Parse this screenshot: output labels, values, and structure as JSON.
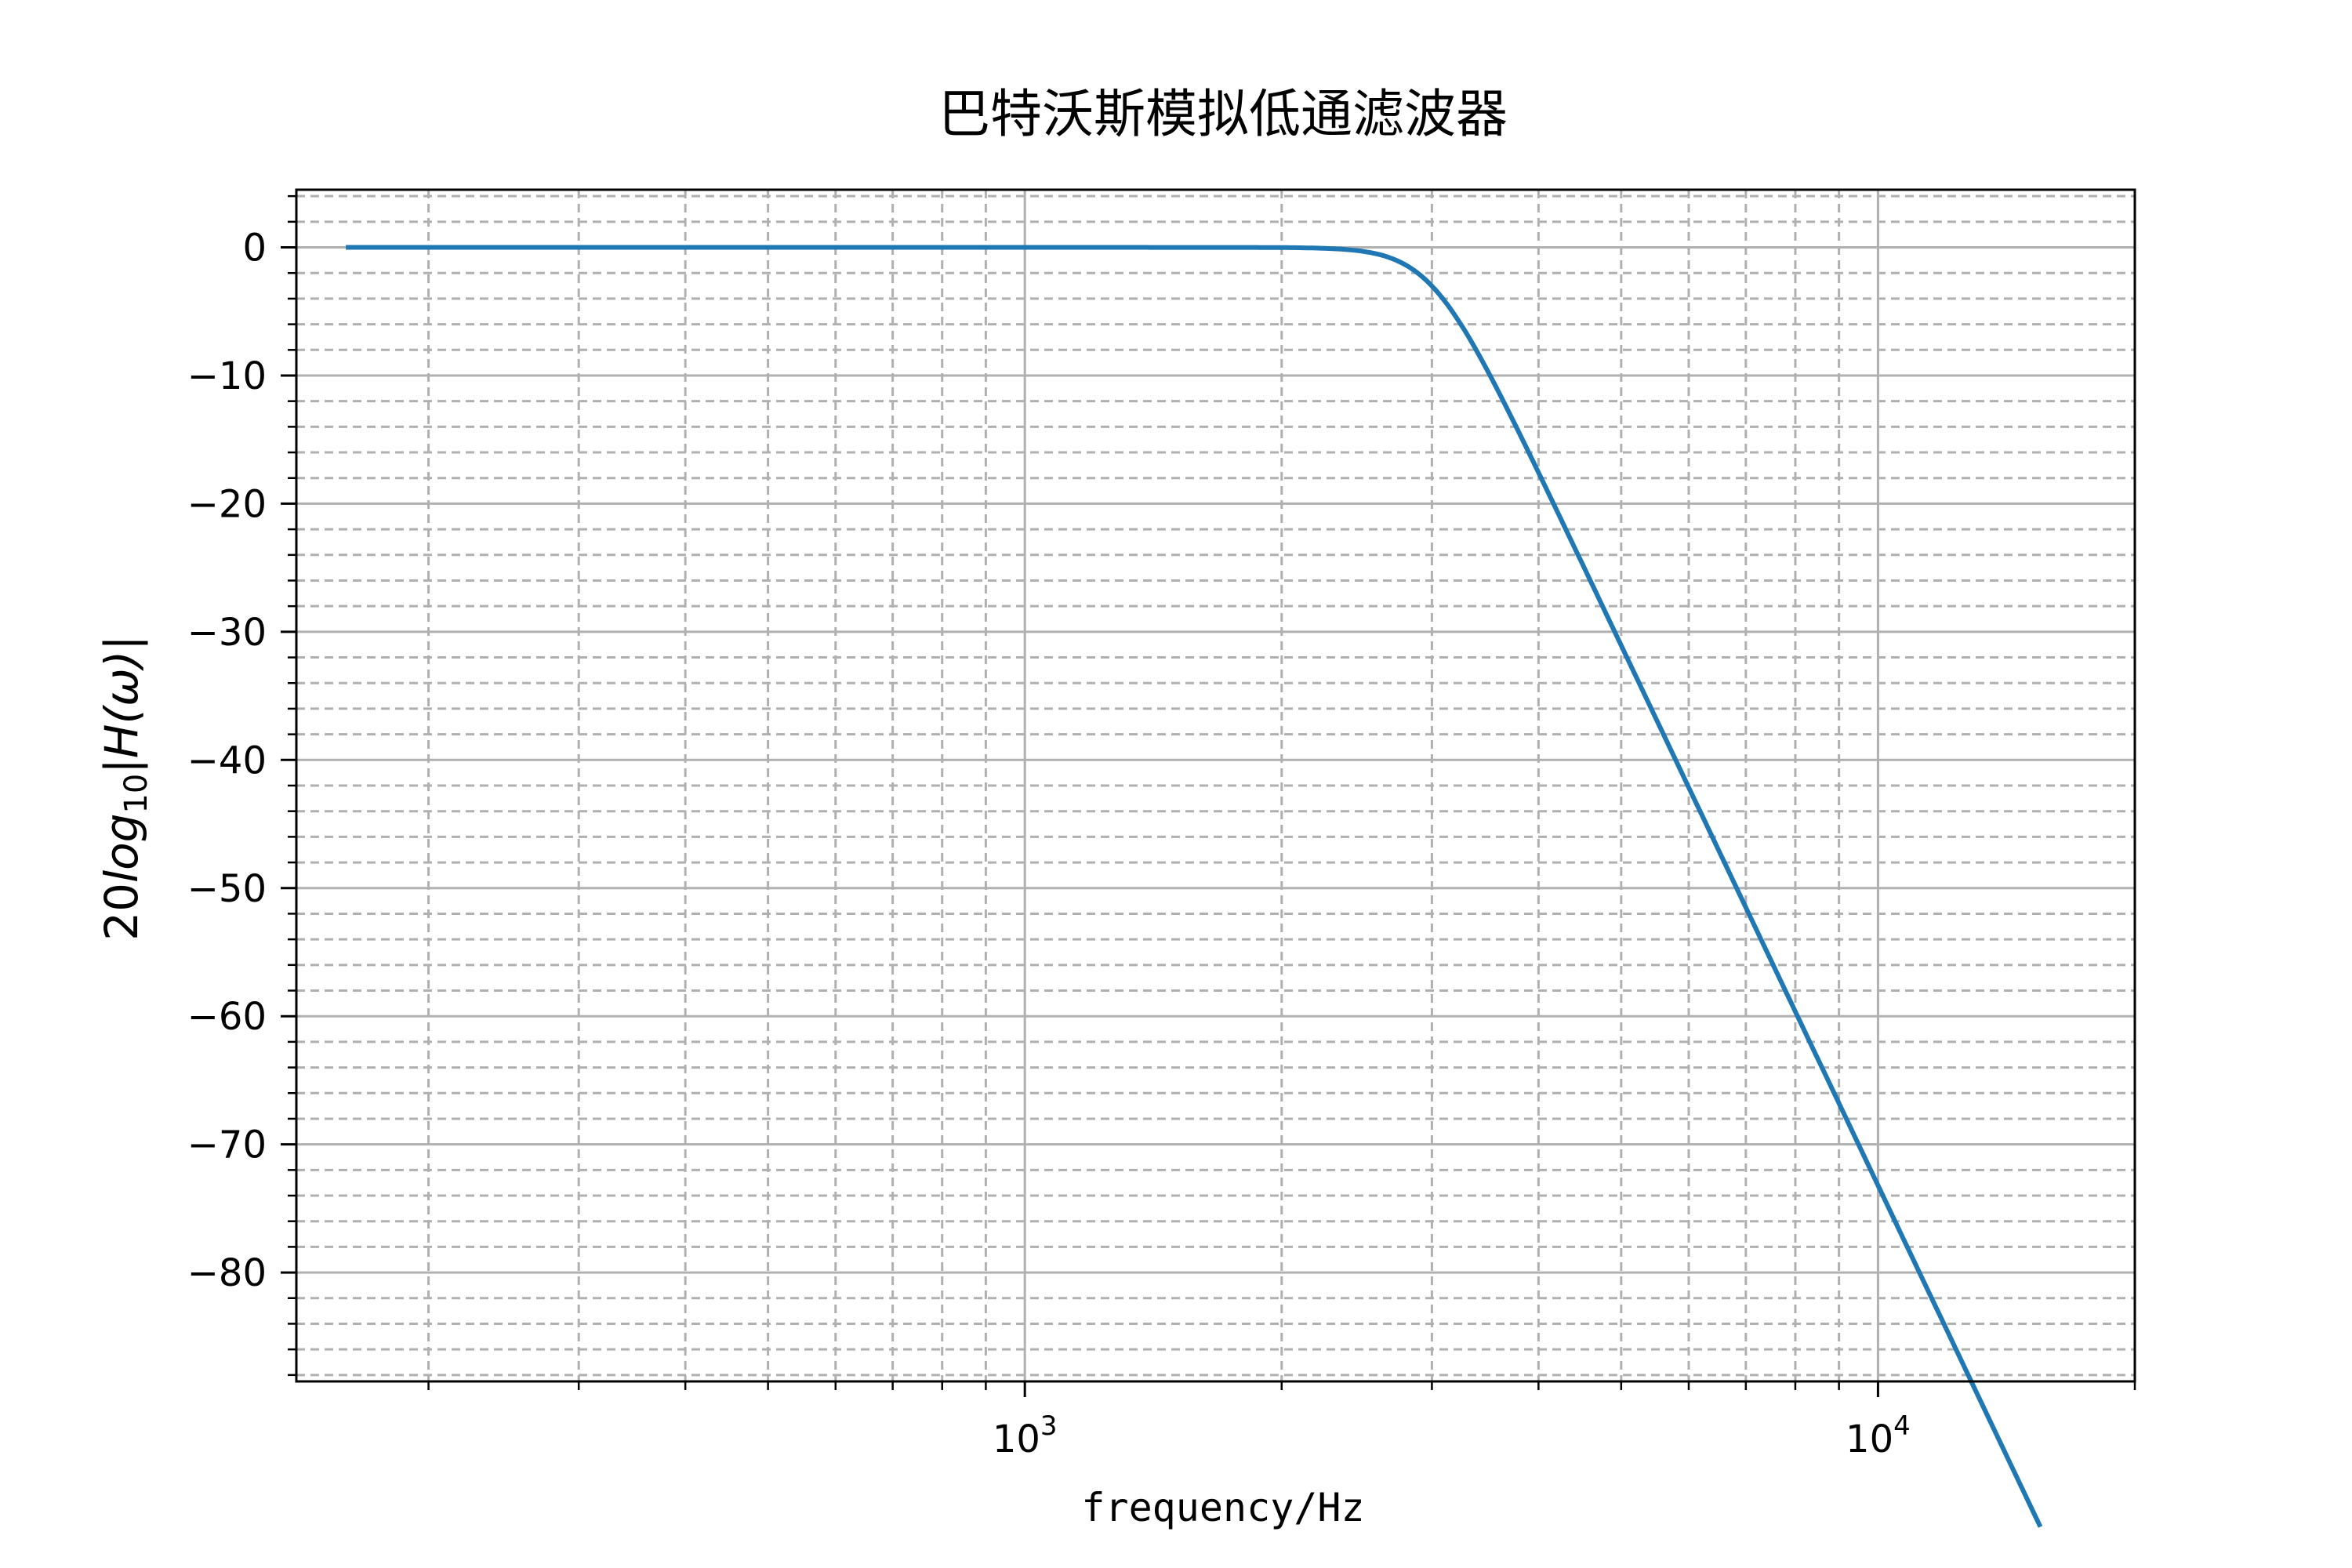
{
  "chart_data": {
    "type": "line",
    "title": "巴特沃斯模拟低通滤波器",
    "xlabel": "frequency/Hz",
    "ylabel": "20log10|H(ω)|",
    "ylabel_parts": {
      "prefix": "20",
      "log": "log",
      "sub": "10",
      "expr": "|H(ω)|"
    },
    "x_scale": "log",
    "xlim": [
      140,
      20000
    ],
    "ylim": [
      -88.5,
      4.5
    ],
    "x_major_ticks": [
      {
        "value": 1000,
        "base": "10",
        "exp": "3"
      },
      {
        "value": 10000,
        "base": "10",
        "exp": "4"
      }
    ],
    "x_minor_ticks": [
      200,
      300,
      400,
      500,
      600,
      700,
      800,
      900,
      2000,
      3000,
      4000,
      5000,
      6000,
      7000,
      8000,
      9000,
      20000
    ],
    "y_major_ticks": [
      0,
      -10,
      -20,
      -30,
      -40,
      -50,
      -60,
      -70,
      -80
    ],
    "y_tick_labels": [
      "0",
      "−10",
      "−20",
      "−30",
      "−40",
      "−50",
      "−60",
      "−70",
      "−80"
    ],
    "grid": {
      "major": "solid",
      "minor": "dashed"
    },
    "series": [
      {
        "line_color": "#1f77b4",
        "model": {
          "kind": "butterworth",
          "order": 7,
          "cutoff_hz": 3000
        },
        "x_range": [
          160,
          15500
        ]
      }
    ]
  }
}
